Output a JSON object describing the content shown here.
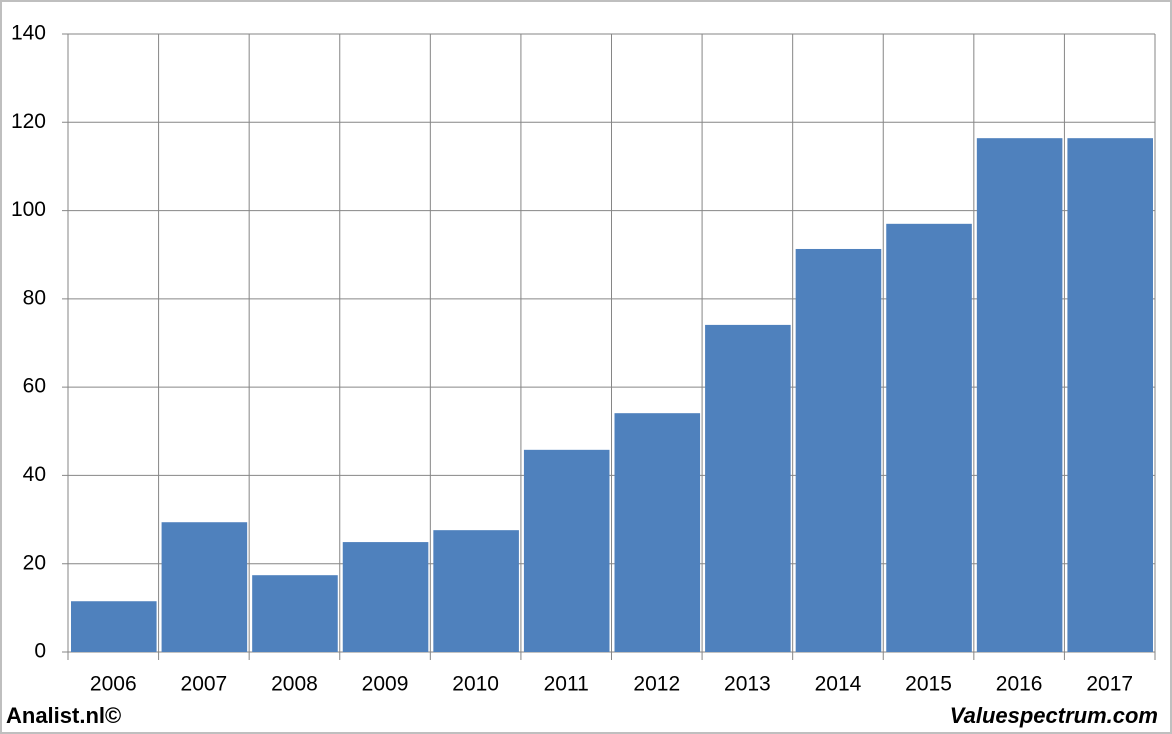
{
  "chart_data": {
    "type": "bar",
    "categories": [
      "2006",
      "2007",
      "2008",
      "2009",
      "2010",
      "2011",
      "2012",
      "2013",
      "2014",
      "2015",
      "2016",
      "2017"
    ],
    "values": [
      11.5,
      29.4,
      17.4,
      24.9,
      27.6,
      45.8,
      54.1,
      74.1,
      91.3,
      97.0,
      116.4,
      116.4
    ],
    "color": "#4f81bd",
    "ylim": [
      0,
      140
    ],
    "yticks": [
      0,
      20,
      40,
      60,
      80,
      100,
      120,
      140
    ],
    "grid": true,
    "footer_left": "Analist.nl©",
    "footer_right": "Valuespectrum.com"
  }
}
